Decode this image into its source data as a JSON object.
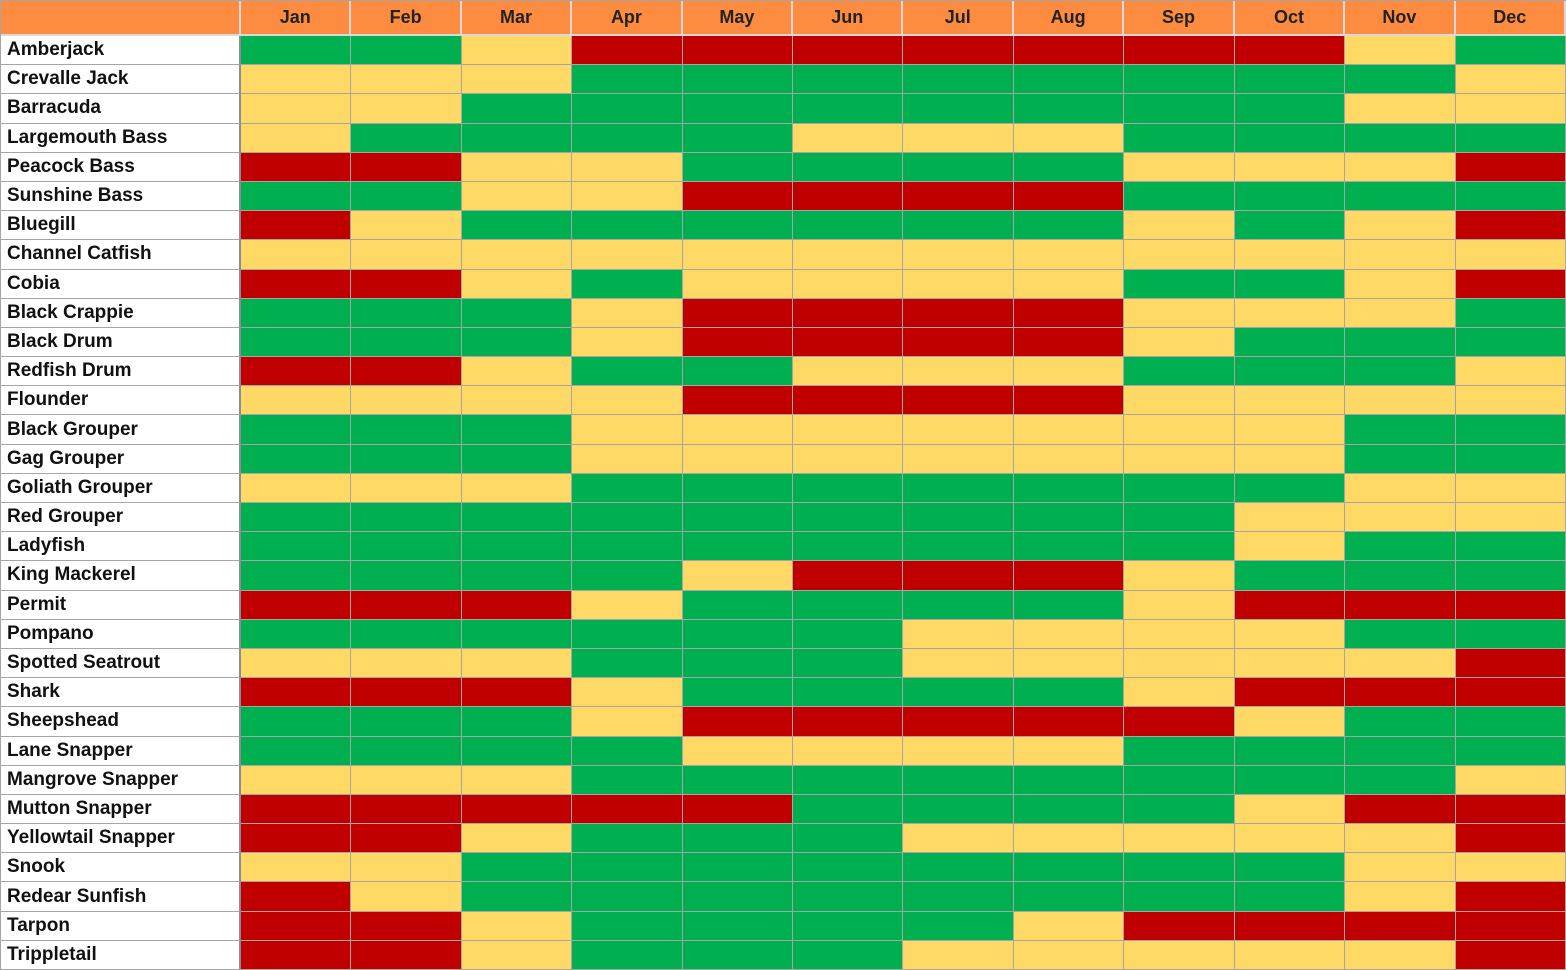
{
  "colors": {
    "header": "#fd8c40",
    "good": "#00b050",
    "fair": "#ffd966",
    "poor": "#c00000"
  },
  "chart_data": {
    "type": "heatmap",
    "months": [
      "Jan",
      "Feb",
      "Mar",
      "Apr",
      "May",
      "Jun",
      "Jul",
      "Aug",
      "Sep",
      "Oct",
      "Nov",
      "Dec"
    ],
    "rows": [
      {
        "fish": "Amberjack",
        "ratings": [
          "G",
          "G",
          "Y",
          "R",
          "R",
          "R",
          "R",
          "R",
          "R",
          "R",
          "Y",
          "G"
        ]
      },
      {
        "fish": "Crevalle Jack",
        "ratings": [
          "Y",
          "Y",
          "Y",
          "G",
          "G",
          "G",
          "G",
          "G",
          "G",
          "G",
          "G",
          "Y"
        ]
      },
      {
        "fish": "Barracuda",
        "ratings": [
          "Y",
          "Y",
          "G",
          "G",
          "G",
          "G",
          "G",
          "G",
          "G",
          "G",
          "Y",
          "Y"
        ]
      },
      {
        "fish": "Largemouth Bass",
        "ratings": [
          "Y",
          "G",
          "G",
          "G",
          "G",
          "Y",
          "Y",
          "Y",
          "G",
          "G",
          "G",
          "G"
        ]
      },
      {
        "fish": "Peacock Bass",
        "ratings": [
          "R",
          "R",
          "Y",
          "Y",
          "G",
          "G",
          "G",
          "G",
          "Y",
          "Y",
          "Y",
          "R"
        ]
      },
      {
        "fish": "Sunshine Bass",
        "ratings": [
          "G",
          "G",
          "Y",
          "Y",
          "R",
          "R",
          "R",
          "R",
          "G",
          "G",
          "G",
          "G"
        ]
      },
      {
        "fish": "Bluegill",
        "ratings": [
          "R",
          "Y",
          "G",
          "G",
          "G",
          "G",
          "G",
          "G",
          "Y",
          "G",
          "Y",
          "R"
        ]
      },
      {
        "fish": "Channel Catfish",
        "ratings": [
          "Y",
          "Y",
          "Y",
          "Y",
          "Y",
          "Y",
          "Y",
          "Y",
          "Y",
          "Y",
          "Y",
          "Y"
        ]
      },
      {
        "fish": "Cobia",
        "ratings": [
          "R",
          "R",
          "Y",
          "G",
          "Y",
          "Y",
          "Y",
          "Y",
          "G",
          "G",
          "Y",
          "R"
        ]
      },
      {
        "fish": "Black Crappie",
        "ratings": [
          "G",
          "G",
          "G",
          "Y",
          "R",
          "R",
          "R",
          "R",
          "Y",
          "Y",
          "Y",
          "G"
        ]
      },
      {
        "fish": "Black Drum",
        "ratings": [
          "G",
          "G",
          "G",
          "Y",
          "R",
          "R",
          "R",
          "R",
          "Y",
          "G",
          "G",
          "G"
        ]
      },
      {
        "fish": "Redfish Drum",
        "ratings": [
          "R",
          "R",
          "Y",
          "G",
          "G",
          "Y",
          "Y",
          "Y",
          "G",
          "G",
          "G",
          "Y"
        ]
      },
      {
        "fish": "Flounder",
        "ratings": [
          "Y",
          "Y",
          "Y",
          "Y",
          "R",
          "R",
          "R",
          "R",
          "Y",
          "Y",
          "Y",
          "Y"
        ]
      },
      {
        "fish": "Black Grouper",
        "ratings": [
          "G",
          "G",
          "G",
          "Y",
          "Y",
          "Y",
          "Y",
          "Y",
          "Y",
          "Y",
          "G",
          "G"
        ]
      },
      {
        "fish": "Gag Grouper",
        "ratings": [
          "G",
          "G",
          "G",
          "Y",
          "Y",
          "Y",
          "Y",
          "Y",
          "Y",
          "Y",
          "G",
          "G"
        ]
      },
      {
        "fish": "Goliath Grouper",
        "ratings": [
          "Y",
          "Y",
          "Y",
          "G",
          "G",
          "G",
          "G",
          "G",
          "G",
          "G",
          "Y",
          "Y"
        ]
      },
      {
        "fish": "Red Grouper",
        "ratings": [
          "G",
          "G",
          "G",
          "G",
          "G",
          "G",
          "G",
          "G",
          "G",
          "Y",
          "Y",
          "Y"
        ]
      },
      {
        "fish": "Ladyfish",
        "ratings": [
          "G",
          "G",
          "G",
          "G",
          "G",
          "G",
          "G",
          "G",
          "G",
          "Y",
          "G",
          "G"
        ]
      },
      {
        "fish": "King Mackerel",
        "ratings": [
          "G",
          "G",
          "G",
          "G",
          "Y",
          "R",
          "R",
          "R",
          "Y",
          "G",
          "G",
          "G"
        ]
      },
      {
        "fish": "Permit",
        "ratings": [
          "R",
          "R",
          "R",
          "Y",
          "G",
          "G",
          "G",
          "G",
          "Y",
          "R",
          "R",
          "R"
        ]
      },
      {
        "fish": "Pompano",
        "ratings": [
          "G",
          "G",
          "G",
          "G",
          "G",
          "G",
          "Y",
          "Y",
          "Y",
          "Y",
          "G",
          "G"
        ]
      },
      {
        "fish": "Spotted Seatrout",
        "ratings": [
          "Y",
          "Y",
          "Y",
          "G",
          "G",
          "G",
          "Y",
          "Y",
          "Y",
          "Y",
          "Y",
          "R"
        ]
      },
      {
        "fish": "Shark",
        "ratings": [
          "R",
          "R",
          "R",
          "Y",
          "G",
          "G",
          "G",
          "G",
          "Y",
          "R",
          "R",
          "R"
        ]
      },
      {
        "fish": "Sheepshead",
        "ratings": [
          "G",
          "G",
          "G",
          "Y",
          "R",
          "R",
          "R",
          "R",
          "R",
          "Y",
          "G",
          "G"
        ]
      },
      {
        "fish": "Lane Snapper",
        "ratings": [
          "G",
          "G",
          "G",
          "G",
          "Y",
          "Y",
          "Y",
          "Y",
          "G",
          "G",
          "G",
          "G"
        ]
      },
      {
        "fish": "Mangrove Snapper",
        "ratings": [
          "Y",
          "Y",
          "Y",
          "G",
          "G",
          "G",
          "G",
          "G",
          "G",
          "G",
          "G",
          "Y"
        ]
      },
      {
        "fish": "Mutton Snapper",
        "ratings": [
          "R",
          "R",
          "R",
          "R",
          "R",
          "G",
          "G",
          "G",
          "G",
          "Y",
          "R",
          "R"
        ]
      },
      {
        "fish": "Yellowtail Snapper",
        "ratings": [
          "R",
          "R",
          "Y",
          "G",
          "G",
          "G",
          "Y",
          "Y",
          "Y",
          "Y",
          "Y",
          "R"
        ]
      },
      {
        "fish": "Snook",
        "ratings": [
          "Y",
          "Y",
          "G",
          "G",
          "G",
          "G",
          "G",
          "G",
          "G",
          "G",
          "Y",
          "Y"
        ]
      },
      {
        "fish": "Redear Sunfish",
        "ratings": [
          "R",
          "Y",
          "G",
          "G",
          "G",
          "G",
          "G",
          "G",
          "G",
          "G",
          "Y",
          "R"
        ]
      },
      {
        "fish": "Tarpon",
        "ratings": [
          "R",
          "R",
          "Y",
          "G",
          "G",
          "G",
          "G",
          "Y",
          "R",
          "R",
          "R",
          "R"
        ]
      },
      {
        "fish": "Trippletail",
        "ratings": [
          "R",
          "R",
          "Y",
          "G",
          "G",
          "G",
          "Y",
          "Y",
          "Y",
          "Y",
          "Y",
          "R"
        ]
      }
    ]
  }
}
